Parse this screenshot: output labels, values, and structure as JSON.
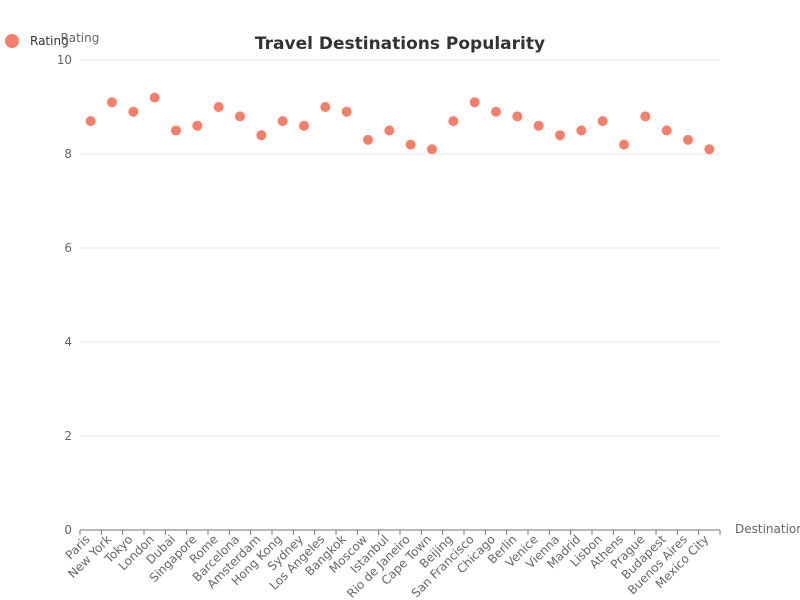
{
  "chart_data": {
    "type": "scatter",
    "title": "Travel Destinations Popularity",
    "xlabel": "Destination",
    "ylabel": "Rating",
    "ylim": [
      0,
      10
    ],
    "yticks": [
      0,
      2,
      4,
      6,
      8,
      10
    ],
    "grid": true,
    "legend_position": "top-left",
    "color": "#f47f6b",
    "categories": [
      "Paris",
      "New York",
      "Tokyo",
      "London",
      "Dubai",
      "Singapore",
      "Rome",
      "Barcelona",
      "Amsterdam",
      "Hong Kong",
      "Sydney",
      "Los Angeles",
      "Bangkok",
      "Moscow",
      "Istanbul",
      "Rio de Janeiro",
      "Cape Town",
      "Beijing",
      "San Francisco",
      "Chicago",
      "Berlin",
      "Venice",
      "Vienna",
      "Madrid",
      "Lisbon",
      "Athens",
      "Prague",
      "Budapest",
      "Buenos Aires",
      "Mexico City"
    ],
    "series": [
      {
        "name": "Rating",
        "values": [
          8.7,
          9.1,
          8.9,
          9.2,
          8.5,
          8.6,
          9.0,
          8.8,
          8.4,
          8.7,
          8.6,
          9.0,
          8.9,
          8.3,
          8.5,
          8.2,
          8.1,
          8.7,
          9.1,
          8.9,
          8.8,
          8.6,
          8.4,
          8.5,
          8.7,
          8.2,
          8.8,
          8.5,
          8.3,
          8.1
        ]
      }
    ]
  }
}
